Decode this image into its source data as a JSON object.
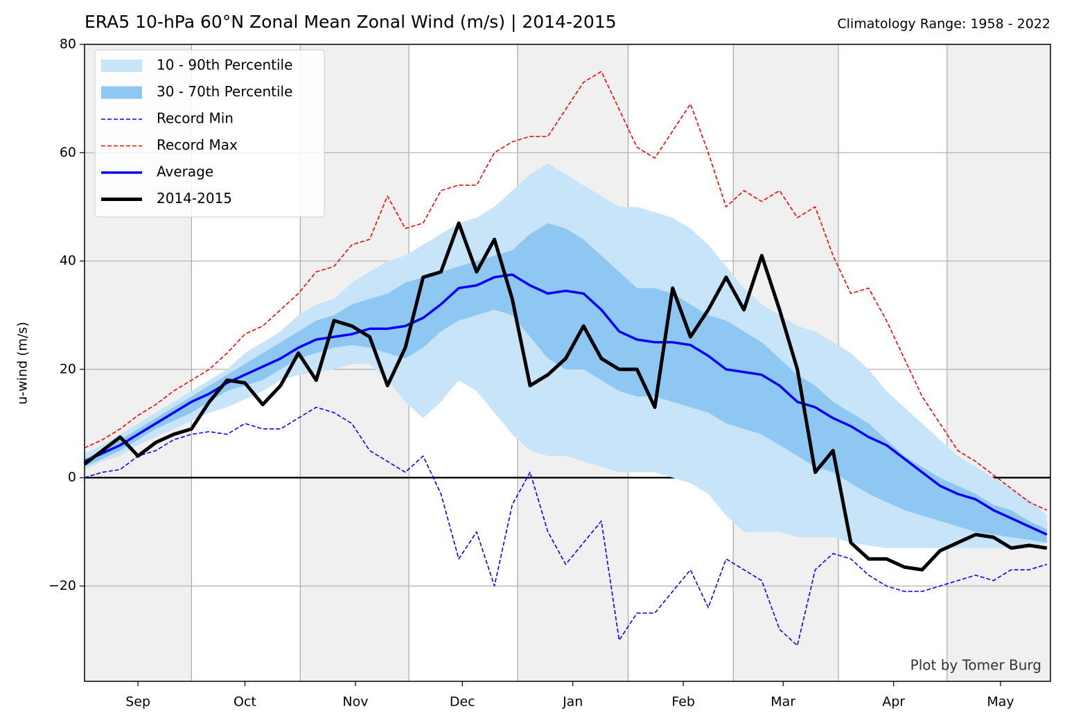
{
  "chart_data": {
    "type": "line",
    "title": "ERA5 10-hPa 60°N Zonal Mean Zonal Wind (m/s) | 2014-2015",
    "subtitle": "Climatology Range: 1958 - 2022",
    "ylabel": "u-wind (m/s)",
    "annotation": "Plot by Tomer Burg",
    "xlim": [
      0,
      271
    ],
    "xticks": [
      {
        "value": 15,
        "label": "Sep"
      },
      {
        "value": 45,
        "label": "Oct"
      },
      {
        "value": 76,
        "label": "Nov"
      },
      {
        "value": 106,
        "label": "Dec"
      },
      {
        "value": 137,
        "label": "Jan"
      },
      {
        "value": 168,
        "label": "Feb"
      },
      {
        "value": 196,
        "label": "Mar"
      },
      {
        "value": 227,
        "label": "Apr"
      },
      {
        "value": 257,
        "label": "May"
      }
    ],
    "ylim": [
      -37.6,
      80
    ],
    "yticks": [
      {
        "value": -20,
        "label": "−20"
      },
      0,
      20,
      40,
      60,
      80
    ],
    "grid": true,
    "legend": "upper left",
    "x": [
      0,
      5,
      10,
      15,
      20,
      25,
      30,
      35,
      40,
      45,
      50,
      55,
      60,
      65,
      70,
      75,
      80,
      85,
      90,
      95,
      100,
      105,
      110,
      115,
      120,
      125,
      130,
      135,
      140,
      145,
      150,
      155,
      160,
      165,
      170,
      175,
      180,
      185,
      190,
      195,
      200,
      205,
      210,
      215,
      220,
      225,
      230,
      235,
      240,
      245,
      250,
      255,
      260,
      265,
      270
    ],
    "series": [
      {
        "name": "10 - 90th Percentile",
        "kind": "band",
        "color": "#c8e4f8",
        "lower": [
          1.5,
          3,
          4,
          6,
          7.5,
          9,
          10.5,
          12,
          13,
          14.5,
          16,
          18,
          19,
          19.5,
          20,
          21,
          21,
          18,
          14,
          11,
          14,
          18,
          16,
          12,
          8,
          5,
          4,
          4,
          3,
          2,
          1,
          1,
          1,
          0,
          -1,
          -3,
          -7,
          -10,
          -10,
          -10,
          -11,
          -11,
          -11,
          -12,
          -12.5,
          -13,
          -13,
          -13,
          -13,
          -13,
          -13,
          -13,
          -13,
          -13,
          -12
        ],
        "upper": [
          4.5,
          6,
          8,
          10,
          12,
          14,
          16,
          18,
          20,
          23,
          25,
          27,
          30,
          32,
          33,
          36,
          38,
          40,
          41,
          43,
          45,
          47,
          48,
          50,
          53,
          56,
          58,
          56,
          54,
          52,
          50,
          50,
          49,
          48,
          46,
          43,
          39,
          35,
          32,
          30,
          28,
          27,
          25,
          23,
          20,
          16,
          13,
          10,
          7,
          4,
          2,
          0,
          -2,
          -4,
          -7
        ]
      },
      {
        "name": "30 - 70th Percentile",
        "kind": "band",
        "color": "#8ec8f2",
        "lower": [
          2,
          3.5,
          5,
          7,
          9,
          10.5,
          12,
          14,
          16,
          17,
          18,
          20,
          22,
          23,
          24,
          24.5,
          24,
          23,
          22,
          24,
          27,
          29,
          30,
          31,
          30,
          26,
          22,
          20,
          20,
          18,
          16,
          15,
          15,
          14,
          13,
          12,
          10,
          9,
          8,
          6,
          4,
          2,
          1,
          -1,
          -3,
          -4.5,
          -6,
          -7,
          -8,
          -9,
          -10,
          -10.5,
          -11,
          -11.5,
          -12
        ],
        "upper": [
          3.5,
          5,
          7,
          9,
          11,
          13,
          15,
          17,
          19,
          21,
          23,
          25,
          27,
          29,
          30,
          32,
          33,
          34,
          36,
          37,
          38,
          39,
          40,
          41,
          42,
          45,
          47,
          46,
          44,
          41,
          38,
          35,
          35,
          34,
          32,
          30,
          29,
          27,
          25,
          22,
          19,
          17,
          14,
          12,
          10,
          7,
          4,
          2,
          0,
          -1.5,
          -3,
          -5,
          -6,
          -8,
          -9.5
        ]
      },
      {
        "name": "Record Min",
        "kind": "line",
        "dash": true,
        "width": 1.6,
        "color": "#0000ff",
        "values": [
          0,
          1,
          1.5,
          4,
          5,
          7,
          8,
          8.5,
          8,
          10,
          9,
          9,
          11,
          13,
          12,
          10,
          5,
          3,
          1,
          4,
          -3,
          -15,
          -10,
          -20,
          -5,
          1,
          -10,
          -16,
          -12,
          -8,
          -30,
          -25,
          -25,
          -21,
          -17,
          -24,
          -15,
          -17,
          -19,
          -28,
          -31,
          -17,
          -14,
          -15,
          -18,
          -20,
          -21,
          -21,
          -20,
          -19,
          -18,
          -19,
          -17,
          -17,
          -16
        ]
      },
      {
        "name": "Record Max",
        "kind": "line",
        "dash": true,
        "width": 1.6,
        "color": "#ff0000",
        "values": [
          5.5,
          7,
          9,
          11.5,
          13.5,
          16,
          18,
          20,
          23,
          26.5,
          28,
          31,
          34,
          38,
          39,
          43,
          44,
          52,
          46,
          47,
          53,
          54,
          54,
          60,
          62,
          63,
          63,
          68,
          73,
          75,
          68,
          61,
          59,
          64,
          69,
          60,
          50,
          53,
          51,
          53,
          48,
          50,
          41,
          34,
          35,
          29,
          22,
          15,
          10,
          5,
          3,
          0.5,
          -2,
          -4.5,
          -6
        ]
      },
      {
        "name": "Average",
        "kind": "line",
        "width": 3.5,
        "color": "#0000ff",
        "values": [
          3,
          4.5,
          6,
          8,
          10,
          12,
          14,
          15.5,
          17.5,
          19,
          20.5,
          22,
          24,
          25.5,
          26,
          26.5,
          27.5,
          27.5,
          28,
          29.5,
          32,
          35,
          35.5,
          37,
          37.5,
          35.5,
          34,
          34.5,
          34,
          31,
          27,
          25.5,
          25,
          25,
          24.5,
          22.5,
          20,
          19.5,
          19,
          17,
          14,
          13,
          11,
          9.5,
          7.5,
          6,
          3.5,
          1,
          -1.5,
          -3,
          -4,
          -6,
          -7.5,
          -9,
          -10.5
        ]
      },
      {
        "name": "2014-2015",
        "kind": "line",
        "width": 5,
        "color": "#000000",
        "values": [
          2.5,
          5,
          7.5,
          4,
          6.5,
          8,
          9,
          14,
          18,
          17.5,
          13.5,
          17,
          23,
          18,
          29,
          28,
          26,
          17,
          24,
          37,
          38,
          47,
          38,
          44,
          33,
          17,
          19,
          22,
          28,
          22,
          20,
          20,
          13,
          35,
          26,
          31,
          37,
          31,
          41,
          31,
          20,
          1,
          5,
          -12,
          -15,
          -15,
          -16.5,
          -17,
          -13.5,
          -12,
          -10.5,
          -11,
          -13,
          -12.5,
          -13
        ]
      }
    ]
  }
}
